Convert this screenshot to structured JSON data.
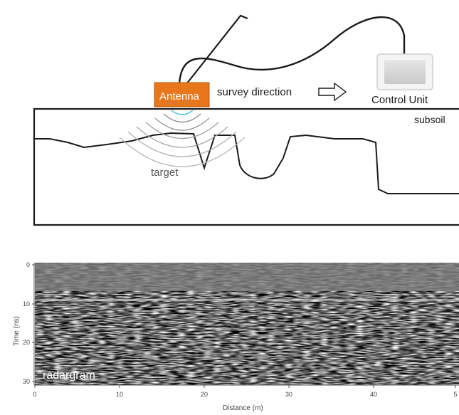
{
  "diagram": {
    "antenna_label": "Antenna",
    "direction_label": "survey direction",
    "direction_arrow_icon": "right-hollow-arrow-icon",
    "control_unit_label": "Control Unit",
    "subsoil_label": "subsoil",
    "target_label": "target",
    "colors": {
      "antenna_fill": "#e8761a",
      "antenna_text": "#ffffff",
      "wave_inner": "#5cc6dc",
      "wave_outer": "#999999",
      "line": "#1a1a1a"
    }
  },
  "radargram": {
    "overlay_label": "radargram",
    "y_axis_label": "Time (ns)",
    "x_axis_label": "Distance (m)",
    "y_ticks": [
      "0",
      "10",
      "20",
      "30"
    ],
    "x_ticks": [
      "0",
      "10",
      "20",
      "30",
      "40",
      "5"
    ]
  }
}
